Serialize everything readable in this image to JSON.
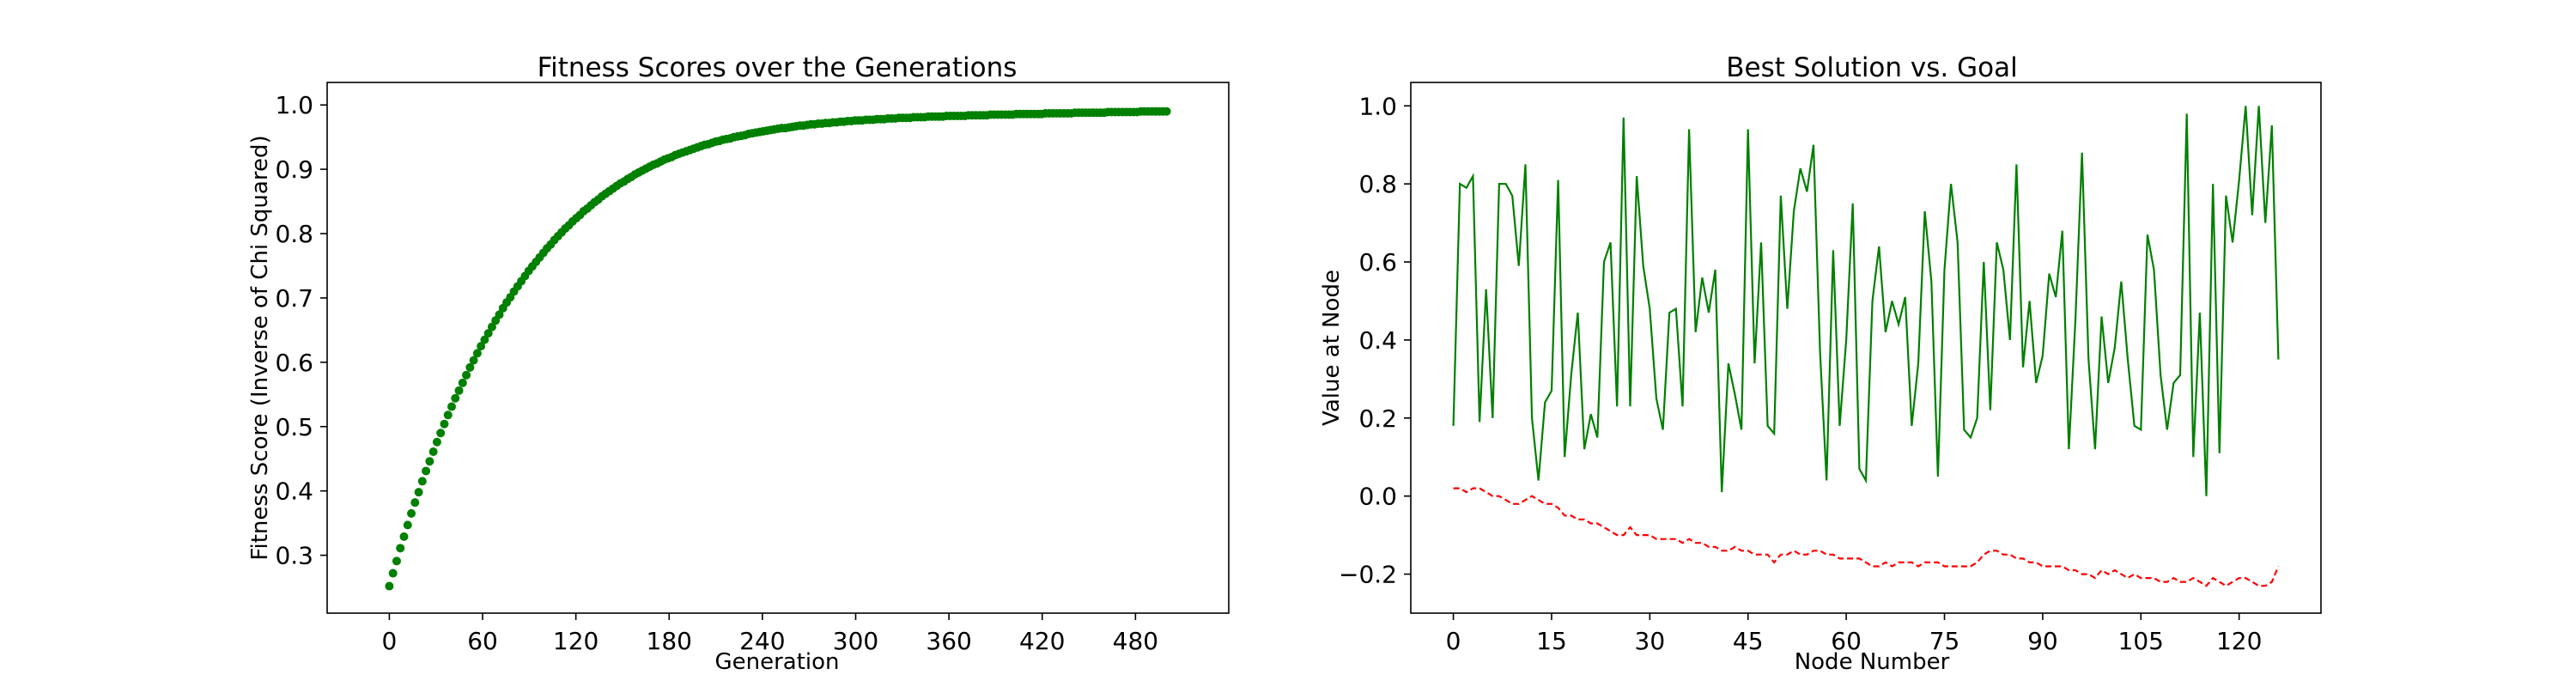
{
  "chart_data": [
    {
      "type": "scatter",
      "title": "Fitness Scores over the Generations",
      "xlabel": "Generation",
      "ylabel": "Fitness Score (Inverse of Chi Squared)",
      "xlim": [
        -40,
        540
      ],
      "ylim": [
        0.21,
        1.035
      ],
      "xticks": [
        0,
        60,
        120,
        180,
        240,
        300,
        360,
        420,
        480
      ],
      "yticks": [
        0.3,
        0.4,
        0.5,
        0.6,
        0.7,
        0.8,
        0.9,
        1.0
      ],
      "grid": false,
      "color": "#008000",
      "x_range": [
        0,
        500
      ],
      "y": [
        0.252,
        0.272,
        0.291,
        0.311,
        0.329,
        0.347,
        0.365,
        0.382,
        0.398,
        0.415,
        0.431,
        0.446,
        0.461,
        0.476,
        0.49,
        0.504,
        0.518,
        0.531,
        0.544,
        0.556,
        0.568,
        0.58,
        0.592,
        0.603,
        0.614,
        0.625,
        0.635,
        0.645,
        0.655,
        0.665,
        0.674,
        0.684,
        0.693,
        0.701,
        0.71,
        0.718,
        0.726,
        0.734,
        0.742,
        0.749,
        0.756,
        0.763,
        0.77,
        0.777,
        0.783,
        0.79,
        0.796,
        0.802,
        0.808,
        0.813,
        0.819,
        0.824,
        0.829,
        0.835,
        0.839,
        0.844,
        0.849,
        0.853,
        0.858,
        0.862,
        0.866,
        0.87,
        0.874,
        0.878,
        0.881,
        0.885,
        0.888,
        0.892,
        0.895,
        0.898,
        0.901,
        0.904,
        0.907,
        0.909,
        0.912,
        0.915,
        0.917,
        0.919,
        0.922,
        0.924,
        0.926,
        0.928,
        0.93,
        0.932,
        0.934,
        0.936,
        0.938,
        0.939,
        0.941,
        0.943,
        0.944,
        0.946,
        0.947,
        0.948,
        0.95,
        0.951,
        0.952,
        0.953,
        0.955,
        0.956,
        0.957,
        0.958,
        0.959,
        0.96,
        0.961,
        0.962,
        0.963,
        0.964,
        0.964,
        0.965,
        0.966,
        0.967,
        0.968,
        0.968,
        0.969,
        0.97,
        0.97,
        0.971,
        0.971,
        0.972,
        0.972,
        0.973,
        0.973,
        0.974,
        0.974,
        0.975,
        0.975,
        0.976,
        0.976,
        0.976,
        0.977,
        0.977,
        0.977,
        0.978,
        0.978,
        0.978,
        0.979,
        0.979,
        0.979,
        0.98,
        0.98,
        0.98,
        0.98,
        0.981,
        0.981,
        0.981,
        0.981,
        0.982,
        0.982,
        0.982,
        0.982,
        0.982,
        0.983,
        0.983,
        0.983,
        0.983,
        0.983,
        0.983,
        0.984,
        0.984,
        0.984,
        0.984,
        0.984,
        0.984,
        0.985,
        0.985,
        0.985,
        0.985,
        0.985,
        0.985,
        0.985,
        0.986,
        0.986,
        0.986,
        0.986,
        0.986,
        0.986,
        0.986,
        0.986,
        0.987,
        0.987,
        0.987,
        0.987,
        0.987,
        0.987,
        0.987,
        0.987,
        0.988,
        0.988,
        0.988,
        0.988,
        0.988,
        0.988,
        0.988,
        0.988,
        0.988,
        0.989,
        0.989,
        0.989,
        0.989,
        0.989,
        0.989,
        0.989,
        0.989,
        0.989,
        0.99,
        0.99,
        0.99,
        0.99,
        0.99,
        0.99,
        0.99,
        0.99
      ]
    },
    {
      "type": "line",
      "title": "Best Solution vs. Goal",
      "xlabel": "Node Number",
      "ylabel": "Value at Node",
      "xlim": [
        -6.5,
        132.5
      ],
      "ylim": [
        -0.3,
        1.06
      ],
      "xticks": [
        0,
        15,
        30,
        45,
        60,
        75,
        90,
        105,
        120
      ],
      "yticks": [
        -0.2,
        0.0,
        0.2,
        0.4,
        0.6,
        0.8,
        1.0
      ],
      "grid": false,
      "series": [
        {
          "style": "solid",
          "color": "#008000",
          "values": [
            0.18,
            0.8,
            0.79,
            0.82,
            0.19,
            0.53,
            0.2,
            0.8,
            0.8,
            0.77,
            0.59,
            0.85,
            0.2,
            0.04,
            0.24,
            0.27,
            0.81,
            0.1,
            0.31,
            0.47,
            0.12,
            0.21,
            0.15,
            0.6,
            0.65,
            0.23,
            0.97,
            0.23,
            0.82,
            0.59,
            0.48,
            0.25,
            0.17,
            0.47,
            0.48,
            0.23,
            0.94,
            0.42,
            0.56,
            0.47,
            0.58,
            0.01,
            0.34,
            0.26,
            0.17,
            0.94,
            0.34,
            0.65,
            0.18,
            0.16,
            0.77,
            0.48,
            0.73,
            0.84,
            0.78,
            0.9,
            0.37,
            0.04,
            0.63,
            0.18,
            0.4,
            0.75,
            0.07,
            0.04,
            0.5,
            0.64,
            0.42,
            0.5,
            0.44,
            0.51,
            0.18,
            0.34,
            0.73,
            0.55,
            0.05,
            0.58,
            0.8,
            0.65,
            0.17,
            0.15,
            0.2,
            0.6,
            0.22,
            0.65,
            0.58,
            0.4,
            0.85,
            0.33,
            0.5,
            0.29,
            0.36,
            0.57,
            0.51,
            0.68,
            0.12,
            0.45,
            0.88,
            0.35,
            0.12,
            0.46,
            0.29,
            0.38,
            0.55,
            0.35,
            0.18,
            0.17,
            0.67,
            0.58,
            0.31,
            0.17,
            0.29,
            0.31,
            0.98,
            0.1,
            0.47,
            0.0,
            0.8,
            0.11,
            0.77,
            0.65,
            0.81,
            1.0,
            0.72,
            1.0,
            0.7,
            0.95,
            0.35
          ]
        },
        {
          "style": "dashed",
          "color": "#ff0000",
          "values": [
            0.02,
            0.02,
            0.01,
            0.02,
            0.02,
            0.01,
            0.0,
            0.0,
            -0.01,
            -0.02,
            -0.02,
            -0.01,
            0.0,
            -0.01,
            -0.02,
            -0.02,
            -0.03,
            -0.05,
            -0.05,
            -0.06,
            -0.06,
            -0.07,
            -0.07,
            -0.08,
            -0.09,
            -0.1,
            -0.1,
            -0.08,
            -0.1,
            -0.1,
            -0.1,
            -0.11,
            -0.11,
            -0.11,
            -0.11,
            -0.12,
            -0.11,
            -0.12,
            -0.12,
            -0.13,
            -0.13,
            -0.14,
            -0.14,
            -0.13,
            -0.14,
            -0.14,
            -0.15,
            -0.15,
            -0.15,
            -0.17,
            -0.15,
            -0.15,
            -0.14,
            -0.15,
            -0.15,
            -0.14,
            -0.14,
            -0.15,
            -0.15,
            -0.16,
            -0.16,
            -0.16,
            -0.16,
            -0.17,
            -0.18,
            -0.18,
            -0.17,
            -0.18,
            -0.17,
            -0.17,
            -0.17,
            -0.18,
            -0.17,
            -0.17,
            -0.17,
            -0.18,
            -0.18,
            -0.18,
            -0.18,
            -0.18,
            -0.17,
            -0.15,
            -0.14,
            -0.14,
            -0.15,
            -0.15,
            -0.16,
            -0.16,
            -0.17,
            -0.17,
            -0.18,
            -0.18,
            -0.18,
            -0.18,
            -0.19,
            -0.19,
            -0.2,
            -0.2,
            -0.21,
            -0.19,
            -0.2,
            -0.19,
            -0.2,
            -0.21,
            -0.2,
            -0.21,
            -0.21,
            -0.21,
            -0.22,
            -0.22,
            -0.21,
            -0.22,
            -0.22,
            -0.21,
            -0.22,
            -0.23,
            -0.21,
            -0.22,
            -0.23,
            -0.22,
            -0.21,
            -0.21,
            -0.22,
            -0.23,
            -0.23,
            -0.22,
            -0.18
          ]
        }
      ]
    }
  ]
}
